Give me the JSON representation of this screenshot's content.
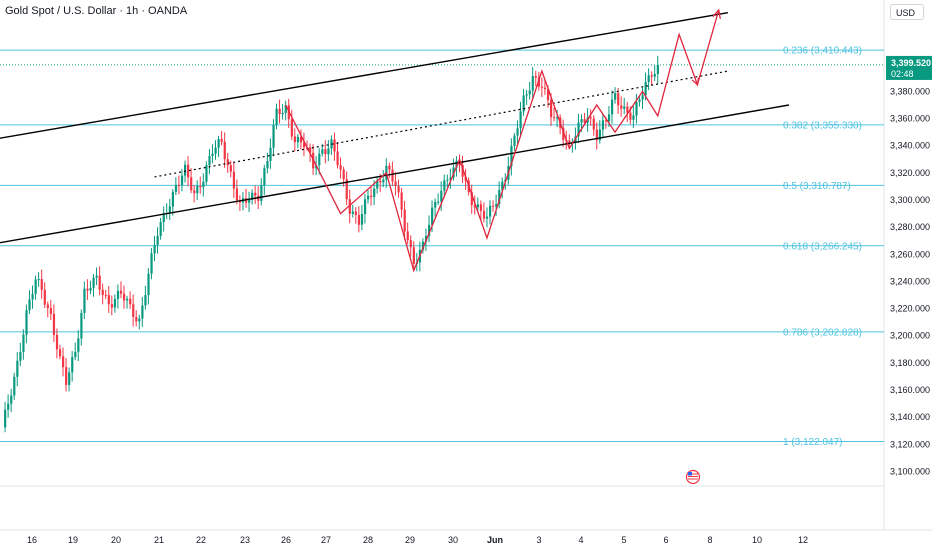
{
  "header": {
    "title": "Gold Spot / U.S. Dollar · 1h · OANDA"
  },
  "currency_button": "USD",
  "price_label": {
    "value": "3,399.520",
    "countdown": "02:48",
    "color": "#089981"
  },
  "colors": {
    "up": "#089981",
    "down": "#f23645",
    "fib": "#4fc3e0",
    "zigzag": "#e0243c",
    "channel": "#000000"
  },
  "flag_icon": "us-flag-icon",
  "chart_data": {
    "type": "candlestick",
    "x_tick_labels": [
      "16",
      "19",
      "20",
      "21",
      "22",
      "23",
      "26",
      "27",
      "28",
      "29",
      "30",
      "Jun",
      "3",
      "4",
      "5",
      "6",
      "8",
      "10",
      "12"
    ],
    "y_tick_labels": [
      "3,380.000",
      "3,360.000",
      "3,340.000",
      "3,320.000",
      "3,300.000",
      "3,280.000",
      "3,260.000",
      "3,240.000",
      "3,220.000",
      "3,200.000",
      "3,180.000",
      "3,160.000",
      "3,140.000",
      "3,120.000",
      "3,100.000"
    ],
    "ylim": [
      3090,
      3440
    ],
    "fib_levels": [
      {
        "label": "0.236 (3,410.443)",
        "value": 3410.443
      },
      {
        "label": "0.382 (3,355.330)",
        "value": 3355.33
      },
      {
        "label": "0.5 (3,310.787)",
        "value": 3310.787
      },
      {
        "label": "0.618 (3,266.245)",
        "value": 3266.245
      },
      {
        "label": "0.786 (3,202.828)",
        "value": 3202.828
      },
      {
        "label": "1 (3,122.047)",
        "value": 3122.047
      }
    ],
    "current_price": 3399.52,
    "close_path": [
      [
        0,
        3130
      ],
      [
        4,
        3170
      ],
      [
        8,
        3215
      ],
      [
        11,
        3240
      ],
      [
        13,
        3235
      ],
      [
        16,
        3215
      ],
      [
        19,
        3180
      ],
      [
        21,
        3165
      ],
      [
        24,
        3190
      ],
      [
        27,
        3232
      ],
      [
        31,
        3240
      ],
      [
        35,
        3225
      ],
      [
        39,
        3230
      ],
      [
        42,
        3220
      ],
      [
        45,
        3212
      ],
      [
        48,
        3245
      ],
      [
        51,
        3275
      ],
      [
        54,
        3295
      ],
      [
        57,
        3310
      ],
      [
        60,
        3320
      ],
      [
        63,
        3305
      ],
      [
        66,
        3318
      ],
      [
        69,
        3335
      ],
      [
        72,
        3342
      ],
      [
        75,
        3320
      ],
      [
        78,
        3295
      ],
      [
        81,
        3300
      ],
      [
        84,
        3305
      ],
      [
        87,
        3330
      ],
      [
        90,
        3362
      ],
      [
        93,
        3368
      ],
      [
        96,
        3345
      ],
      [
        99,
        3340
      ],
      [
        102,
        3325
      ],
      [
        105,
        3338
      ],
      [
        108,
        3340
      ],
      [
        111,
        3320
      ],
      [
        114,
        3295
      ],
      [
        117,
        3285
      ],
      [
        120,
        3300
      ],
      [
        123,
        3312
      ],
      [
        126,
        3325
      ],
      [
        129,
        3310
      ],
      [
        132,
        3280
      ],
      [
        135,
        3256
      ],
      [
        138,
        3265
      ],
      [
        141,
        3290
      ],
      [
        144,
        3310
      ],
      [
        147,
        3320
      ],
      [
        150,
        3325
      ],
      [
        153,
        3305
      ],
      [
        156,
        3295
      ],
      [
        159,
        3285
      ],
      [
        162,
        3300
      ],
      [
        165,
        3320
      ],
      [
        168,
        3345
      ],
      [
        171,
        3372
      ],
      [
        174,
        3392
      ],
      [
        177,
        3385
      ],
      [
        180,
        3362
      ],
      [
        183,
        3355
      ],
      [
        186,
        3340
      ],
      [
        189,
        3352
      ],
      [
        192,
        3362
      ],
      [
        195,
        3350
      ],
      [
        198,
        3358
      ],
      [
        201,
        3375
      ],
      [
        204,
        3368
      ],
      [
        207,
        3362
      ],
      [
        210,
        3378
      ],
      [
        213,
        3395
      ],
      [
        215,
        3399.52
      ]
    ],
    "channel_upper": [
      [
        -2,
        3345
      ],
      [
        238,
        3438
      ]
    ],
    "channel_lower": [
      [
        -2,
        3268
      ],
      [
        258,
        3370
      ]
    ],
    "channel_mid": [
      [
        50,
        3317
      ],
      [
        238,
        3395
      ]
    ],
    "zigzag": [
      [
        93,
        3370
      ],
      [
        111,
        3290
      ],
      [
        126,
        3320
      ],
      [
        135,
        3248
      ],
      [
        150,
        3330
      ],
      [
        159,
        3272
      ],
      [
        177,
        3395
      ],
      [
        186,
        3338
      ],
      [
        195,
        3370
      ],
      [
        201,
        3350
      ],
      [
        210,
        3380
      ],
      [
        215,
        3362
      ],
      [
        222,
        3422
      ],
      [
        228,
        3385
      ],
      [
        235,
        3440
      ]
    ]
  }
}
